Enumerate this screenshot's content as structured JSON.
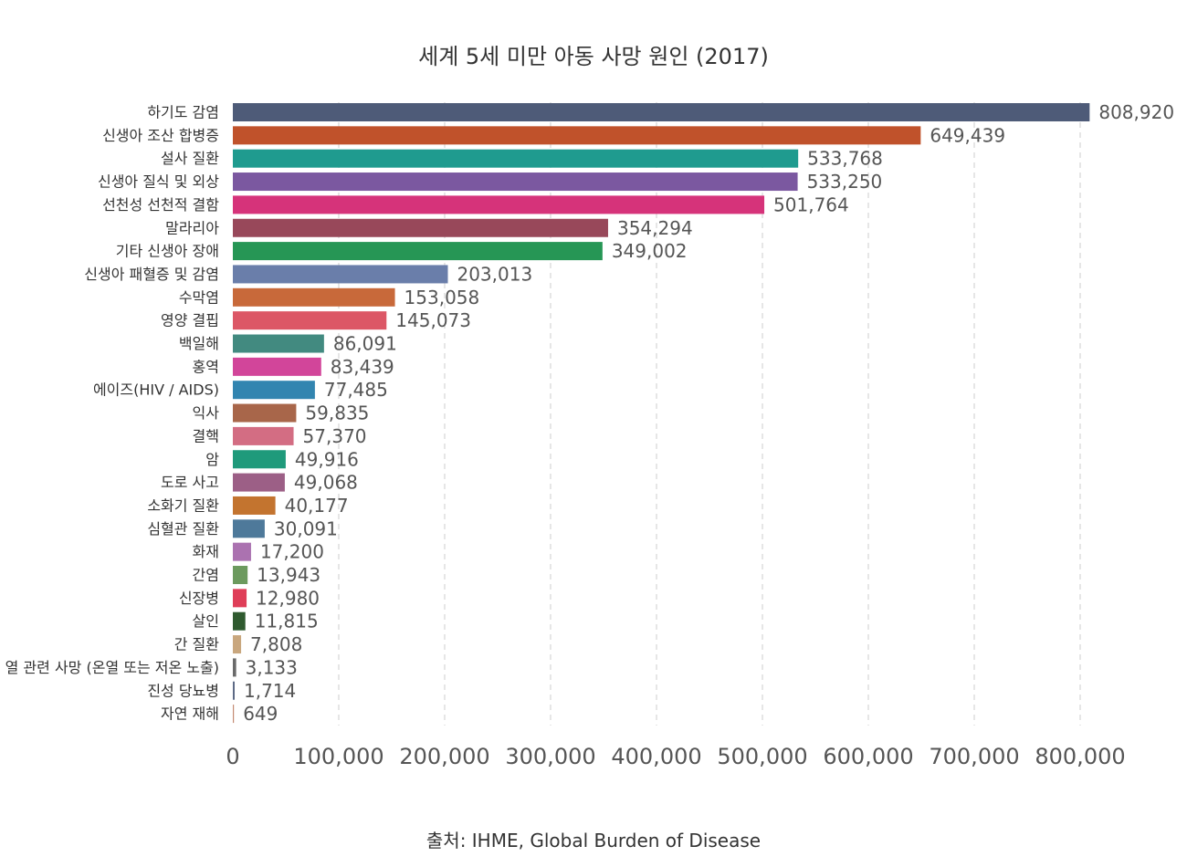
{
  "chart_data": {
    "type": "bar",
    "orientation": "horizontal",
    "title": "세계 5세 미만 아동 사망 원인 (2017)",
    "source": "출처: IHME, Global Burden of Disease",
    "xlim": [
      0,
      800000
    ],
    "xticks": [
      0,
      100000,
      200000,
      300000,
      400000,
      500000,
      600000,
      700000,
      800000
    ],
    "xtick_labels": [
      "0",
      "100,000",
      "200,000",
      "300,000",
      "400,000",
      "500,000",
      "600,000",
      "700,000",
      "800,000"
    ],
    "grid": true,
    "categories": [
      "하기도 감염",
      "신생아 조산 합병증",
      "설사 질환",
      "신생아 질식 및 외상",
      "선천성 선천적 결함",
      "말라리아",
      "기타 신생아 장애",
      "신생아 패혈증 및 감염",
      "수막염",
      "영양 결핍",
      "백일해",
      "홍역",
      "에이즈(HIV / AIDS)",
      "익사",
      "결핵",
      "암",
      "도로 사고",
      "소화기 질환",
      "심혈관 질환",
      "화재",
      "간염",
      "신장병",
      "살인",
      "간 질환",
      "열 관련 사망 (온열 또는 저온 노출)",
      "진성 당뇨병",
      "자연 재해"
    ],
    "values": [
      808920,
      649439,
      533768,
      533250,
      501764,
      354294,
      349002,
      203013,
      153058,
      145073,
      86091,
      83439,
      77485,
      59835,
      57370,
      49916,
      49068,
      40177,
      30091,
      17200,
      13943,
      12980,
      11815,
      7808,
      3133,
      1714,
      649
    ],
    "value_labels": [
      "808,920",
      "649,439",
      "533,768",
      "533,250",
      "501,764",
      "354,294",
      "349,002",
      "203,013",
      "153,058",
      "145,073",
      "86,091",
      "83,439",
      "77,485",
      "59,835",
      "57,370",
      "49,916",
      "49,068",
      "40,177",
      "30,091",
      "17,200",
      "13,943",
      "12,980",
      "11,815",
      "7,808",
      "3,133",
      "1,714",
      "649"
    ],
    "colors": [
      "#4e5b78",
      "#c0522b",
      "#1f9b8f",
      "#7b58a0",
      "#d6337a",
      "#98485a",
      "#269655",
      "#6a7eaa",
      "#c8693a",
      "#dc5766",
      "#428a80",
      "#d2459a",
      "#3285b0",
      "#a8664a",
      "#d36d83",
      "#1f9a7b",
      "#9c5f86",
      "#c3742f",
      "#4e799a",
      "#ab72b0",
      "#6c9a5e",
      "#df3e58",
      "#2f5a2f",
      "#c9a77e",
      "#6a6a6a",
      "#5c6a85",
      "#c48a73"
    ]
  }
}
